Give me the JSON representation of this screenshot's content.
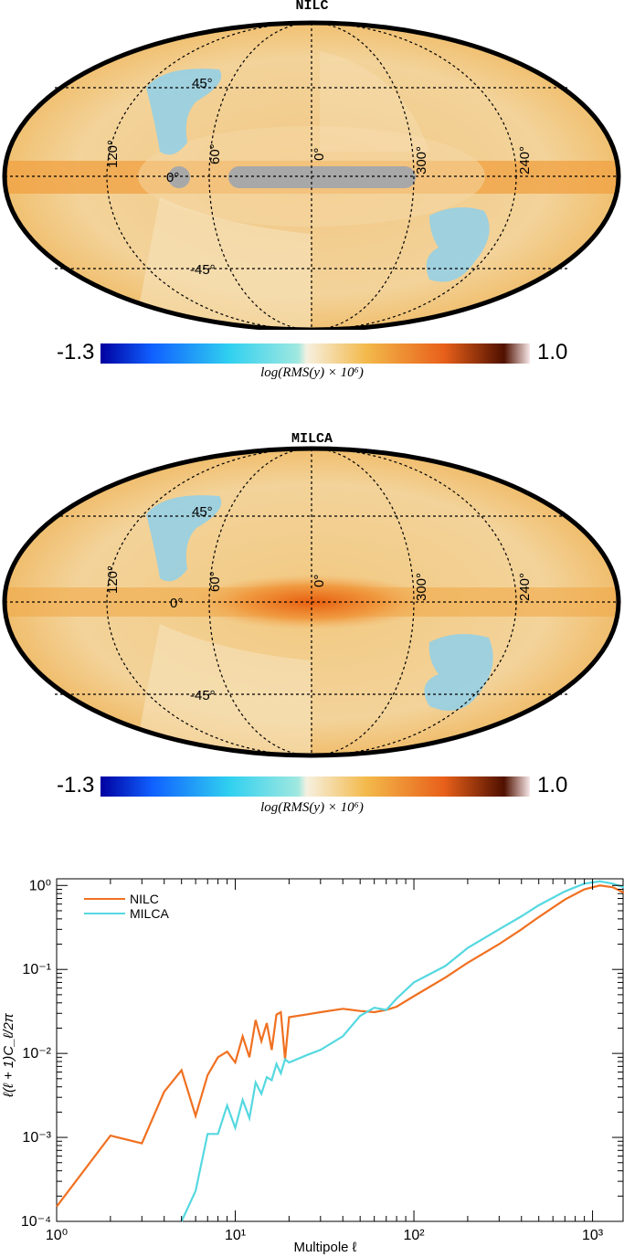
{
  "maps": [
    {
      "title": "NILC",
      "lon_labels": [
        "120°",
        "60°",
        "0°",
        "300°",
        "240°"
      ],
      "lat_labels": [
        "45°",
        "0°",
        "-45°"
      ],
      "colorbar": {
        "min": "-1.3",
        "max": "1.0",
        "caption": "log(RMS(y) × 10⁶)"
      },
      "masked_galactic_plane": true
    },
    {
      "title": "MILCA",
      "lon_labels": [
        "120°",
        "60°",
        "0°",
        "300°",
        "240°"
      ],
      "lat_labels": [
        "45°",
        "0°",
        "-45°"
      ],
      "colorbar": {
        "min": "-1.3",
        "max": "1.0",
        "caption": "log(RMS(y) × 10⁶)"
      },
      "masked_galactic_plane": false
    }
  ],
  "colors": {
    "nilc": "#f07020",
    "milca": "#55d8e0",
    "map_orange": "#f2a640",
    "map_light": "#f5dfb0",
    "map_blue": "#7ecbe6",
    "mask_grey": "#a8a8a8"
  },
  "chart_data": {
    "type": "line",
    "xlabel": "Multipole ℓ",
    "ylabel": "ℓ(ℓ + 1)C_ℓ/2π",
    "xscale": "log",
    "yscale": "log",
    "xlim": [
      1,
      1500
    ],
    "ylim": [
      0.0001,
      1.2
    ],
    "x_tick_labels": [
      "10⁰",
      "10¹",
      "10²",
      "10³"
    ],
    "y_tick_labels": [
      "10⁻⁴",
      "10⁻³",
      "10⁻²",
      "10⁻¹",
      "10⁰"
    ],
    "legend_position": "top-left",
    "series": [
      {
        "name": "NILC",
        "x": [
          1,
          2,
          3,
          4,
          5,
          6,
          7,
          8,
          9,
          10,
          11,
          12,
          13,
          14,
          15,
          16,
          17,
          18,
          19,
          20,
          25,
          30,
          40,
          50,
          60,
          70,
          80,
          100,
          150,
          200,
          300,
          400,
          500,
          700,
          900,
          1100,
          1300,
          1500
        ],
        "y": [
          0.00015,
          0.00105,
          0.00085,
          0.0035,
          0.0063,
          0.0018,
          0.0055,
          0.009,
          0.0105,
          0.0078,
          0.016,
          0.009,
          0.025,
          0.014,
          0.023,
          0.011,
          0.029,
          0.031,
          0.0085,
          0.027,
          0.029,
          0.031,
          0.034,
          0.032,
          0.031,
          0.033,
          0.036,
          0.048,
          0.08,
          0.12,
          0.2,
          0.3,
          0.42,
          0.68,
          0.9,
          1.0,
          0.95,
          0.82
        ]
      },
      {
        "name": "MILCA",
        "x": [
          5,
          6,
          7,
          8,
          9,
          10,
          11,
          12,
          13,
          14,
          15,
          16,
          17,
          18,
          19,
          20,
          25,
          30,
          40,
          50,
          60,
          70,
          80,
          100,
          150,
          200,
          300,
          400,
          500,
          700,
          900,
          1100,
          1300,
          1500
        ],
        "y": [
          0.0001,
          0.00023,
          0.0011,
          0.0011,
          0.0024,
          0.0013,
          0.0028,
          0.0017,
          0.0045,
          0.0033,
          0.0052,
          0.0048,
          0.0075,
          0.0058,
          0.0085,
          0.0078,
          0.0095,
          0.011,
          0.016,
          0.028,
          0.035,
          0.033,
          0.045,
          0.07,
          0.11,
          0.18,
          0.3,
          0.43,
          0.58,
          0.85,
          1.05,
          1.12,
          1.05,
          0.95
        ]
      }
    ]
  }
}
